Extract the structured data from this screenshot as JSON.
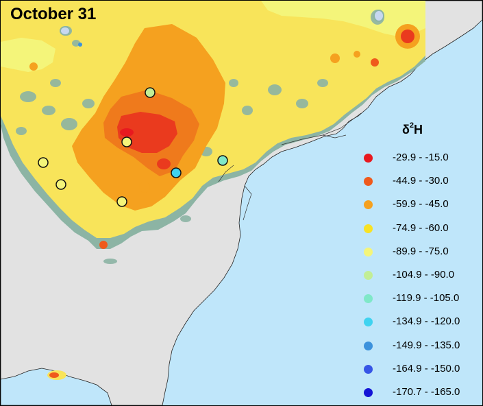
{
  "map": {
    "title": "October 31",
    "legend": {
      "title_symbol": "δ",
      "title_superscript": "2",
      "title_element": "H",
      "classes": [
        {
          "label": "-29.9 - -15.0",
          "color": "#e8191f"
        },
        {
          "label": "-44.9 - -30.0",
          "color": "#ef5a1c"
        },
        {
          "label": "-59.9 - -45.0",
          "color": "#f5a11f"
        },
        {
          "label": "-74.9 - -60.0",
          "color": "#f8e224"
        },
        {
          "label": "-89.9 - -75.0",
          "color": "#f4f57a"
        },
        {
          "label": "-104.9 - -90.0",
          "color": "#c2ee96"
        },
        {
          "label": "-119.9 - -105.0",
          "color": "#7fe8c8"
        },
        {
          "label": "-134.9 - -120.0",
          "color": "#3fd3f0"
        },
        {
          "label": "-149.9 - -135.0",
          "color": "#3c92dc"
        },
        {
          "label": "-164.9 - -150.0",
          "color": "#3655e6"
        },
        {
          "label": "-170.7 - -165.0",
          "color": "#1414d6"
        }
      ]
    },
    "colors": {
      "ocean": "#bfe6fa",
      "land_outside": "#e2e2e2",
      "surface_base": "#f8e45a",
      "surface_fringe": "#8cb4a4"
    },
    "sites": [
      {
        "class": 5,
        "name": "site-1"
      },
      {
        "class": 4,
        "name": "site-2"
      },
      {
        "class": 4,
        "name": "site-3"
      },
      {
        "class": 4,
        "name": "site-4"
      },
      {
        "class": 4,
        "name": "site-5"
      },
      {
        "class": 7,
        "name": "site-6"
      },
      {
        "class": 6,
        "name": "site-7"
      }
    ]
  }
}
